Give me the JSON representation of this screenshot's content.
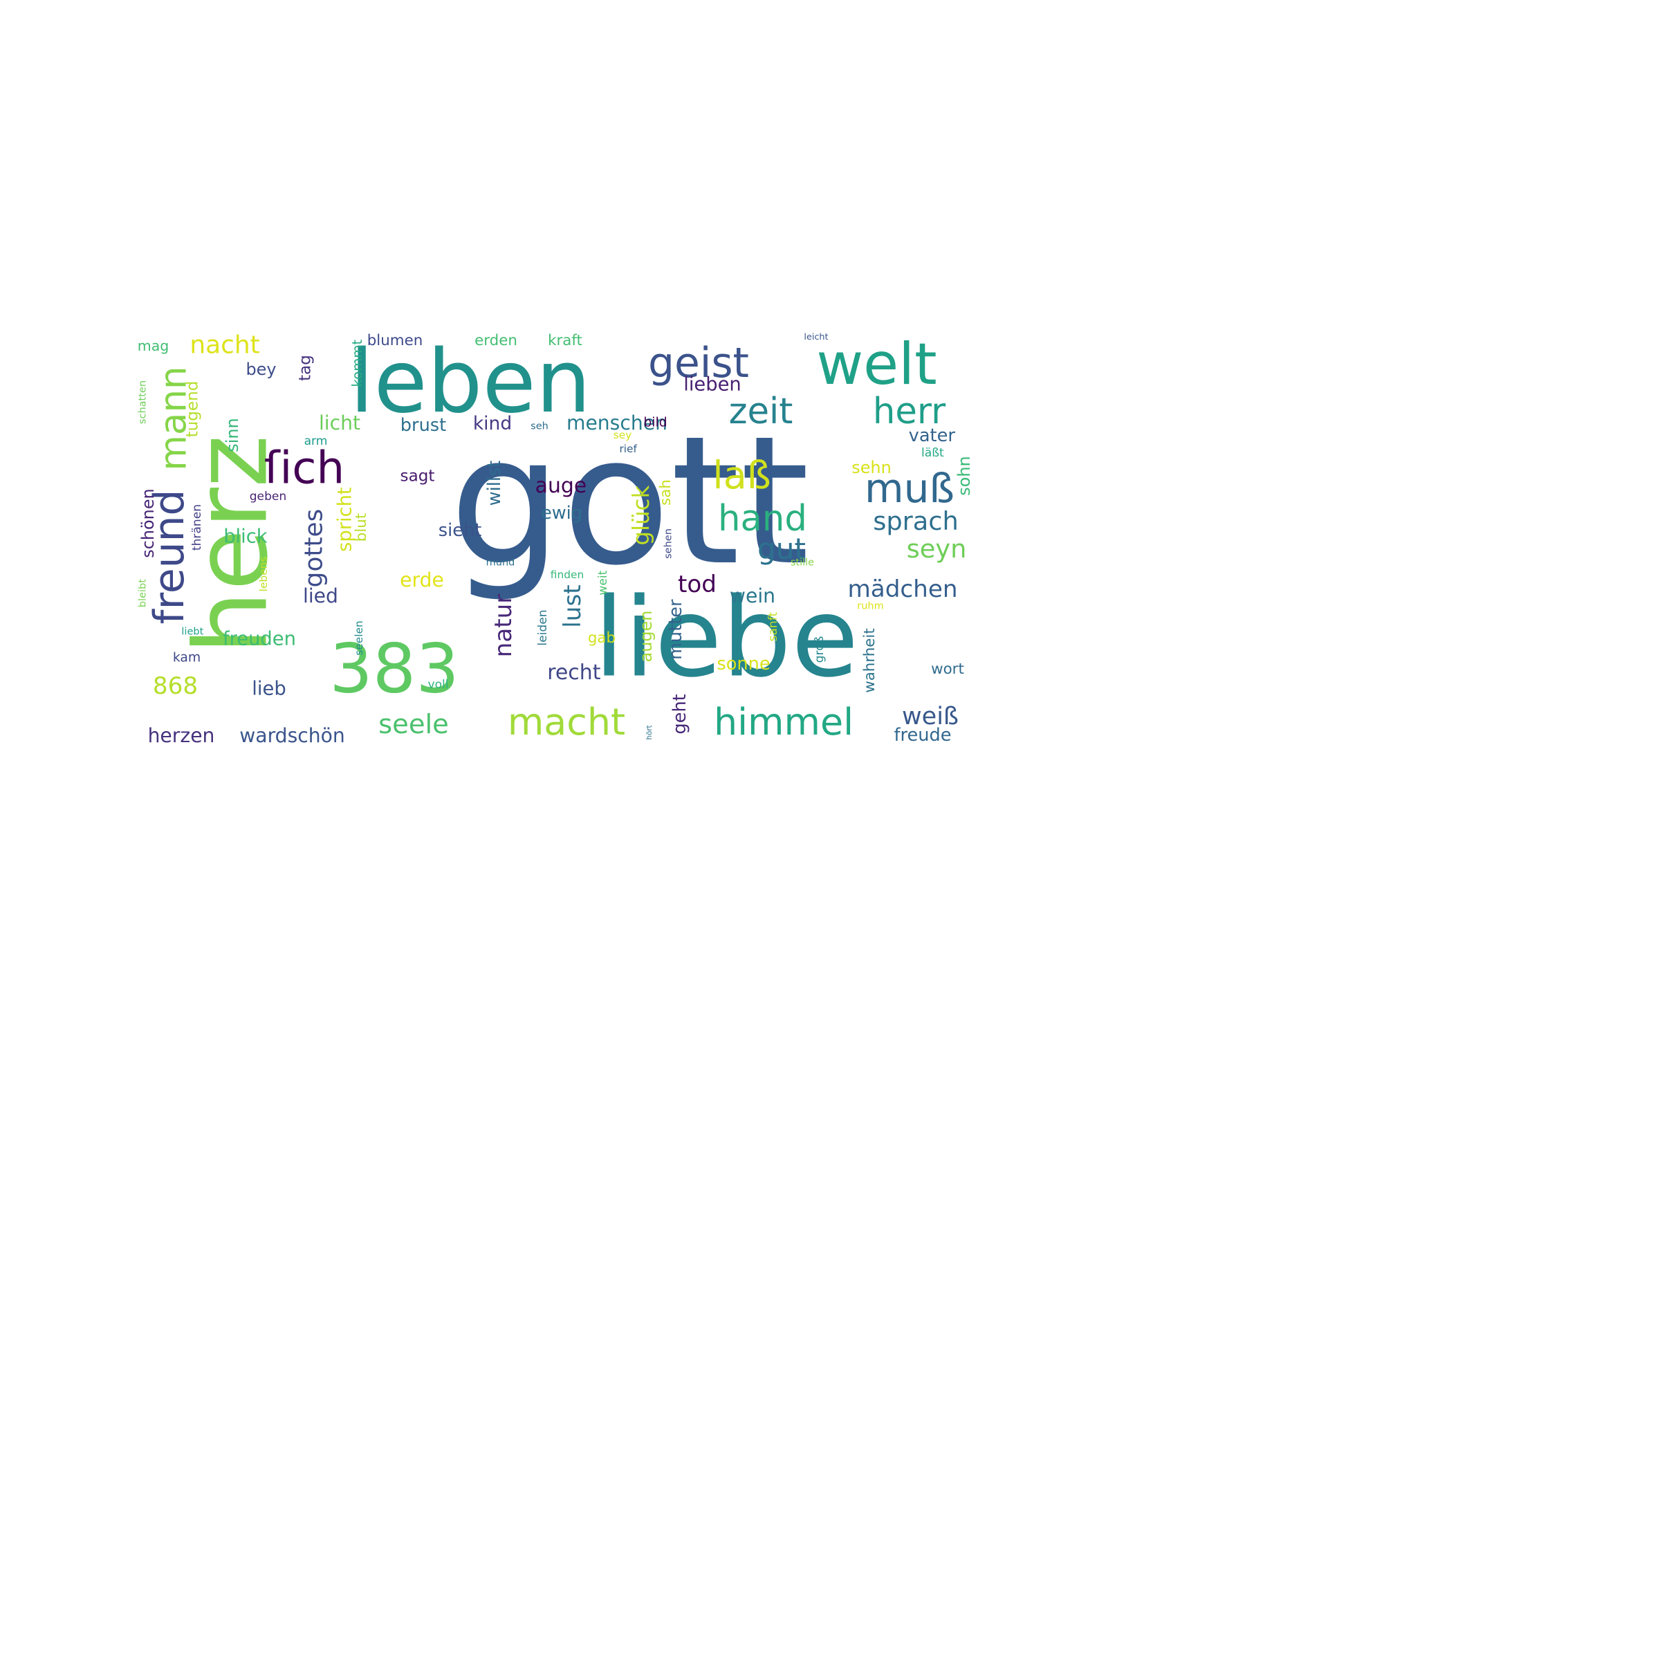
{
  "words": [
    {
      "text": "gott",
      "color": "#365c8d",
      "vertical": false
    },
    {
      "text": "liebe",
      "color": "#25848e",
      "vertical": false
    },
    {
      "text": "herz",
      "color": "#7ad151",
      "vertical": true
    },
    {
      "text": "leben",
      "color": "#21918c",
      "vertical": false
    },
    {
      "text": "383",
      "color": "#5ec962",
      "vertical": false
    },
    {
      "text": "welt",
      "color": "#1fa187",
      "vertical": false
    },
    {
      "text": "geist",
      "color": "#3b528b",
      "vertical": false
    },
    {
      "text": "freund",
      "color": "#3e4989",
      "vertical": true
    },
    {
      "text": "ſich",
      "color": "#440154",
      "vertical": false
    },
    {
      "text": "mann",
      "color": "#86d549",
      "vertical": true
    },
    {
      "text": "zeit",
      "color": "#26828e",
      "vertical": false
    },
    {
      "text": "herr",
      "color": "#1f9e89",
      "vertical": false
    },
    {
      "text": "macht",
      "color": "#a0da39",
      "vertical": false
    },
    {
      "text": "himmel",
      "color": "#22a884",
      "vertical": false
    },
    {
      "text": "hand",
      "color": "#2ab07f",
      "vertical": false
    },
    {
      "text": "muß",
      "color": "#31688e",
      "vertical": false
    },
    {
      "text": "laß",
      "color": "#d0e11c",
      "vertical": false
    },
    {
      "text": "nacht",
      "color": "#dde318",
      "vertical": false
    },
    {
      "text": "gottes",
      "color": "#3e4c8a",
      "vertical": true
    },
    {
      "text": "lust",
      "color": "#2c728e",
      "vertical": true
    },
    {
      "text": "natur",
      "color": "#482878",
      "vertical": true
    },
    {
      "text": "seele",
      "color": "#4ac16d",
      "vertical": false
    },
    {
      "text": "sprach",
      "color": "#2e6f8e",
      "vertical": false
    },
    {
      "text": "seyn",
      "color": "#6ece58",
      "vertical": false
    },
    {
      "text": "gut",
      "color": "#2d718e",
      "vertical": false
    },
    {
      "text": "mädchen",
      "color": "#355f8d",
      "vertical": false
    },
    {
      "text": "glück",
      "color": "#c2df23",
      "vertical": true
    },
    {
      "text": "868",
      "color": "#b5de2b",
      "vertical": false
    },
    {
      "text": "weiß",
      "color": "#38588c",
      "vertical": false
    },
    {
      "text": "tod",
      "color": "#440154",
      "vertical": false
    },
    {
      "text": "recht",
      "color": "#3f4788",
      "vertical": false
    },
    {
      "text": "herzen",
      "color": "#46327e",
      "vertical": false
    },
    {
      "text": "wardschön",
      "color": "#3a548c",
      "vertical": false
    },
    {
      "text": "tugend",
      "color": "#b5de2b",
      "vertical": true
    },
    {
      "text": "mutter",
      "color": "#33638d",
      "vertical": true
    },
    {
      "text": "augen",
      "color": "#a5db36",
      "vertical": true
    },
    {
      "text": "menschen",
      "color": "#287c8e",
      "vertical": false
    },
    {
      "text": "auge",
      "color": "#440154",
      "vertical": false
    },
    {
      "text": "brust",
      "color": "#2d708e",
      "vertical": false
    },
    {
      "text": "kind",
      "color": "#443983",
      "vertical": false
    },
    {
      "text": "spricht",
      "color": "#d2e21b",
      "vertical": true
    },
    {
      "text": "blut",
      "color": "#bade28",
      "vertical": true
    },
    {
      "text": "ewig",
      "color": "#2e6e8e",
      "vertical": false
    },
    {
      "text": "sieht",
      "color": "#3b528b",
      "vertical": false
    },
    {
      "text": "willst",
      "color": "#2f6c8e",
      "vertical": true
    },
    {
      "text": "geht",
      "color": "#482979",
      "vertical": true
    },
    {
      "text": "wein",
      "color": "#2a778e",
      "vertical": false
    },
    {
      "text": "licht",
      "color": "#6ccd5a",
      "vertical": false
    },
    {
      "text": "blick",
      "color": "#3dbc74",
      "vertical": false
    },
    {
      "text": "lieben",
      "color": "#482173",
      "vertical": false
    },
    {
      "text": "vater",
      "color": "#33638d",
      "vertical": false
    },
    {
      "text": "sohn",
      "color": "#3aba76",
      "vertical": true
    },
    {
      "text": "sah",
      "color": "#c8e020",
      "vertical": true
    },
    {
      "text": "schönen",
      "color": "#482677",
      "vertical": true
    },
    {
      "text": "sinn",
      "color": "#35b779",
      "vertical": true
    },
    {
      "text": "freude",
      "color": "#31678e",
      "vertical": false
    },
    {
      "text": "lied",
      "color": "#3f4889",
      "vertical": false
    },
    {
      "text": "freuden",
      "color": "#3dbc74",
      "vertical": false
    },
    {
      "text": "lieb",
      "color": "#3b528b",
      "vertical": false
    },
    {
      "text": "wort",
      "color": "#2f6b8e",
      "vertical": false
    },
    {
      "text": "erde",
      "color": "#e2e418",
      "vertical": false
    },
    {
      "text": "sonne",
      "color": "#d8e219",
      "vertical": false
    },
    {
      "text": "sehn",
      "color": "#d8e219",
      "vertical": false
    },
    {
      "text": "erden",
      "color": "#42be71",
      "vertical": false
    },
    {
      "text": "kraft",
      "color": "#42be71",
      "vertical": false
    },
    {
      "text": "blumen",
      "color": "#3e4989",
      "vertical": false
    },
    {
      "text": "tag",
      "color": "#46327e",
      "vertical": true
    },
    {
      "text": "kommt",
      "color": "#25ab82",
      "vertical": true
    },
    {
      "text": "bey",
      "color": "#3e4c8a",
      "vertical": false
    },
    {
      "text": "sagt",
      "color": "#481a6c",
      "vertical": false
    },
    {
      "text": "mag",
      "color": "#40bd72",
      "vertical": false
    },
    {
      "text": "kam",
      "color": "#3f4788",
      "vertical": false
    },
    {
      "text": "gab",
      "color": "#d2e21b",
      "vertical": false
    },
    {
      "text": "thränen",
      "color": "#424086",
      "vertical": true
    },
    {
      "text": "seelen",
      "color": "#228b8d",
      "vertical": true
    },
    {
      "text": "sanft",
      "color": "#c5e021",
      "vertical": true
    },
    {
      "text": "groß",
      "color": "#24878e",
      "vertical": true
    },
    {
      "text": "wahrheit",
      "color": "#2c738e",
      "vertical": true
    },
    {
      "text": "leiden",
      "color": "#2a788e",
      "vertical": true
    },
    {
      "text": "weit",
      "color": "#4ac16d",
      "vertical": true
    },
    {
      "text": "sehen",
      "color": "#3e4a89",
      "vertical": true
    },
    {
      "text": "lebens",
      "color": "#bddf26",
      "vertical": true
    },
    {
      "text": "bleibt",
      "color": "#79d151",
      "vertical": true
    },
    {
      "text": "schatten",
      "color": "#6ece58",
      "vertical": true
    },
    {
      "text": "hört",
      "color": "#2c718e",
      "vertical": true
    },
    {
      "text": "voll",
      "color": "#2db27d",
      "vertical": false
    },
    {
      "text": "arm",
      "color": "#1e9b8a",
      "vertical": false
    },
    {
      "text": "geben",
      "color": "#482475",
      "vertical": false
    },
    {
      "text": "mund",
      "color": "#2d708e",
      "vertical": false
    },
    {
      "text": "liebt",
      "color": "#1fa088",
      "vertical": false
    },
    {
      "text": "seh",
      "color": "#2e6e8e",
      "vertical": false
    },
    {
      "text": "sey",
      "color": "#d0e11c",
      "vertical": false
    },
    {
      "text": "bild",
      "color": "#440154",
      "vertical": false
    },
    {
      "text": "rief",
      "color": "#34608d",
      "vertical": false
    },
    {
      "text": "läßt",
      "color": "#22a785",
      "vertical": false
    },
    {
      "text": "stille",
      "color": "#86d549",
      "vertical": false
    },
    {
      "text": "finden",
      "color": "#35b779",
      "vertical": false
    },
    {
      "text": "ruhm",
      "color": "#dde318",
      "vertical": false
    },
    {
      "text": "leicht",
      "color": "#39568c",
      "vertical": false
    }
  ]
}
